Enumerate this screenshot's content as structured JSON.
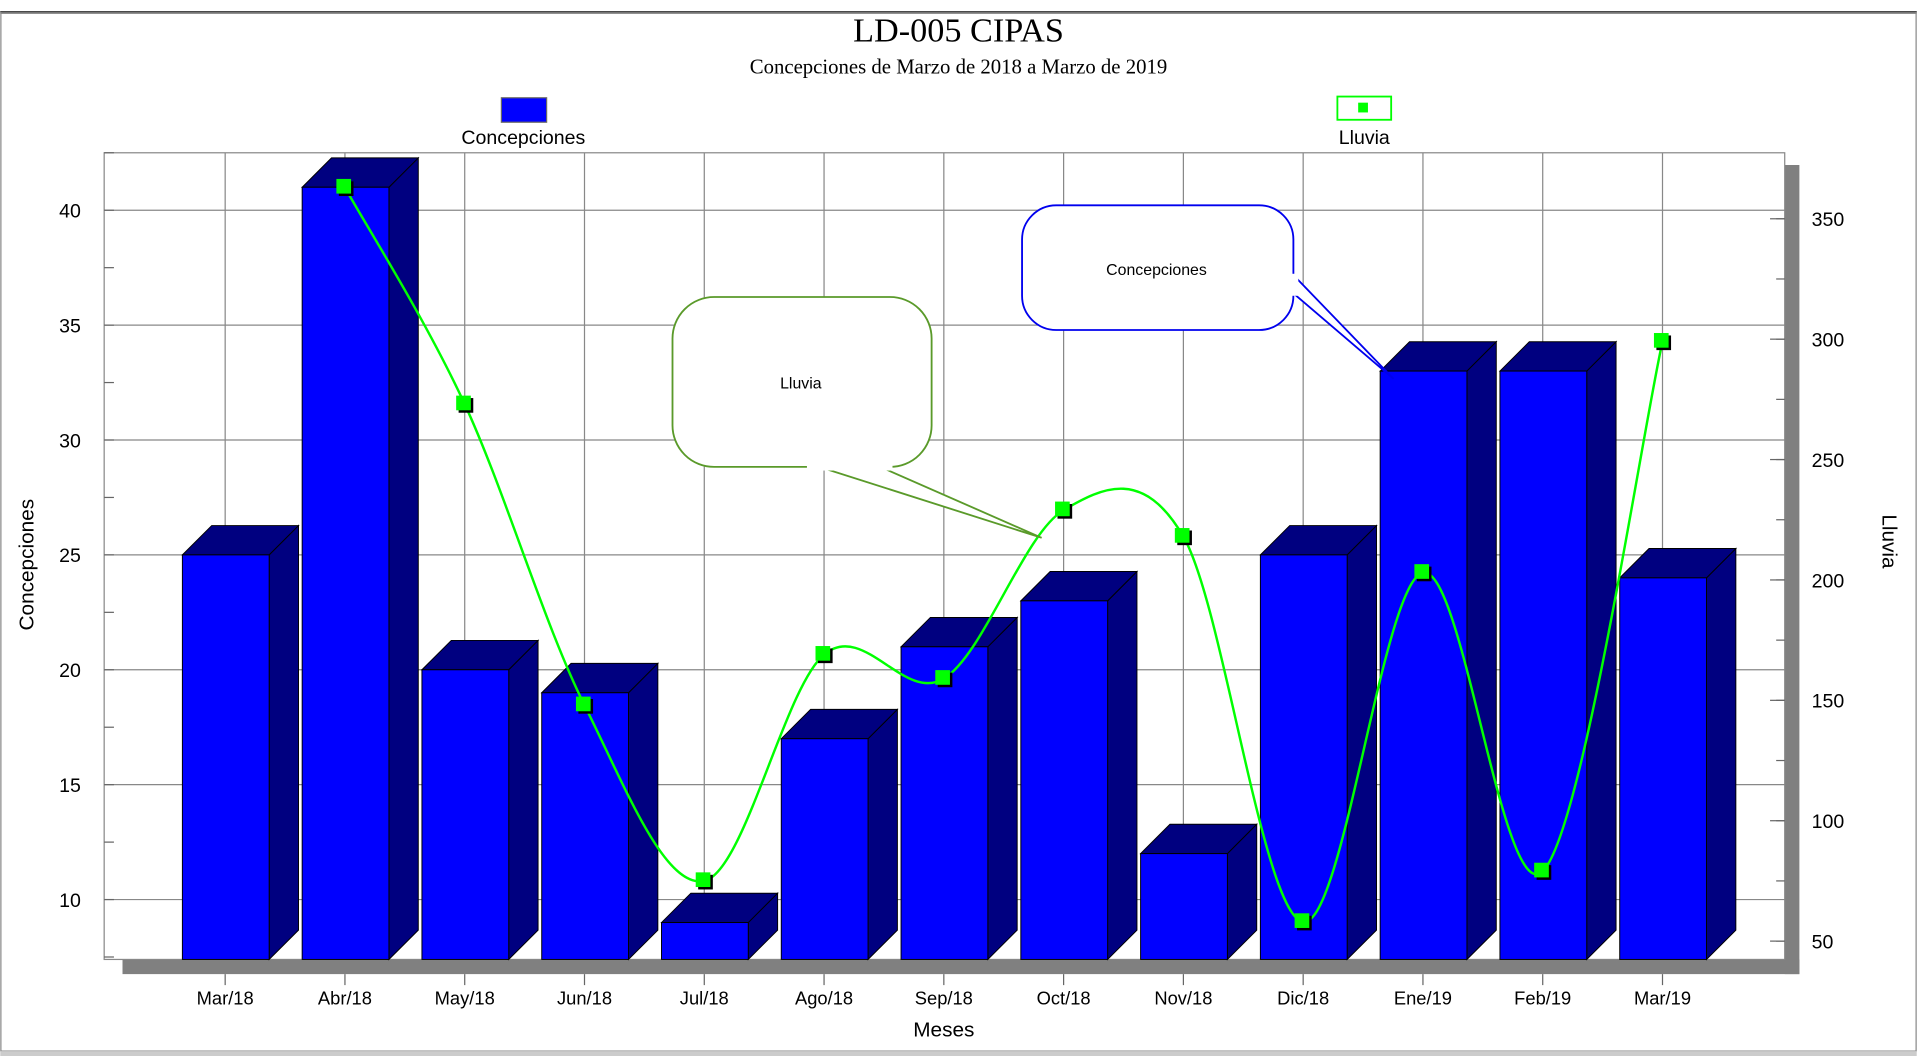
{
  "chart_data": {
    "type": "bar",
    "title": "LD-005  CIPAS",
    "subtitle": "Concepciones de Marzo de 2018 a Marzo de 2019",
    "xlabel": "Meses",
    "ylabel": "Concepciones",
    "y2label": "Lluvia",
    "categories": [
      "Mar/18",
      "Abr/18",
      "May/18",
      "Jun/18",
      "Jul/18",
      "Ago/18",
      "Sep/18",
      "Oct/18",
      "Nov/18",
      "Dic/18",
      "Ene/19",
      "Feb/19",
      "Mar/19"
    ],
    "ylim": [
      7.4,
      42.5
    ],
    "y_ticks": [
      10,
      15,
      20,
      25,
      30,
      35,
      40
    ],
    "y2lim": [
      42,
      360
    ],
    "y2_ticks": [
      50,
      100,
      150,
      200,
      250,
      300,
      350
    ],
    "grid": true,
    "legend_placement": "top",
    "series": [
      {
        "name": "Concepciones",
        "type": "bar-3d",
        "axis": "left",
        "color": "#0000ff",
        "values": [
          25,
          41,
          20,
          19,
          9,
          17,
          21,
          23,
          12,
          25,
          33,
          33,
          24
        ]
      },
      {
        "name": "Lluvia",
        "type": "smooth-line",
        "axis": "right",
        "color": "#00ff00",
        "values": [
          null,
          363,
          273,
          148,
          75,
          169,
          159,
          229,
          218,
          58,
          203,
          79,
          299
        ]
      }
    ],
    "annotations": [
      {
        "text": "Lluvia",
        "series": "Lluvia",
        "color": "#5a9a2a"
      },
      {
        "text": "Concepciones",
        "series": "Concepciones",
        "color": "#0000ee"
      }
    ]
  }
}
